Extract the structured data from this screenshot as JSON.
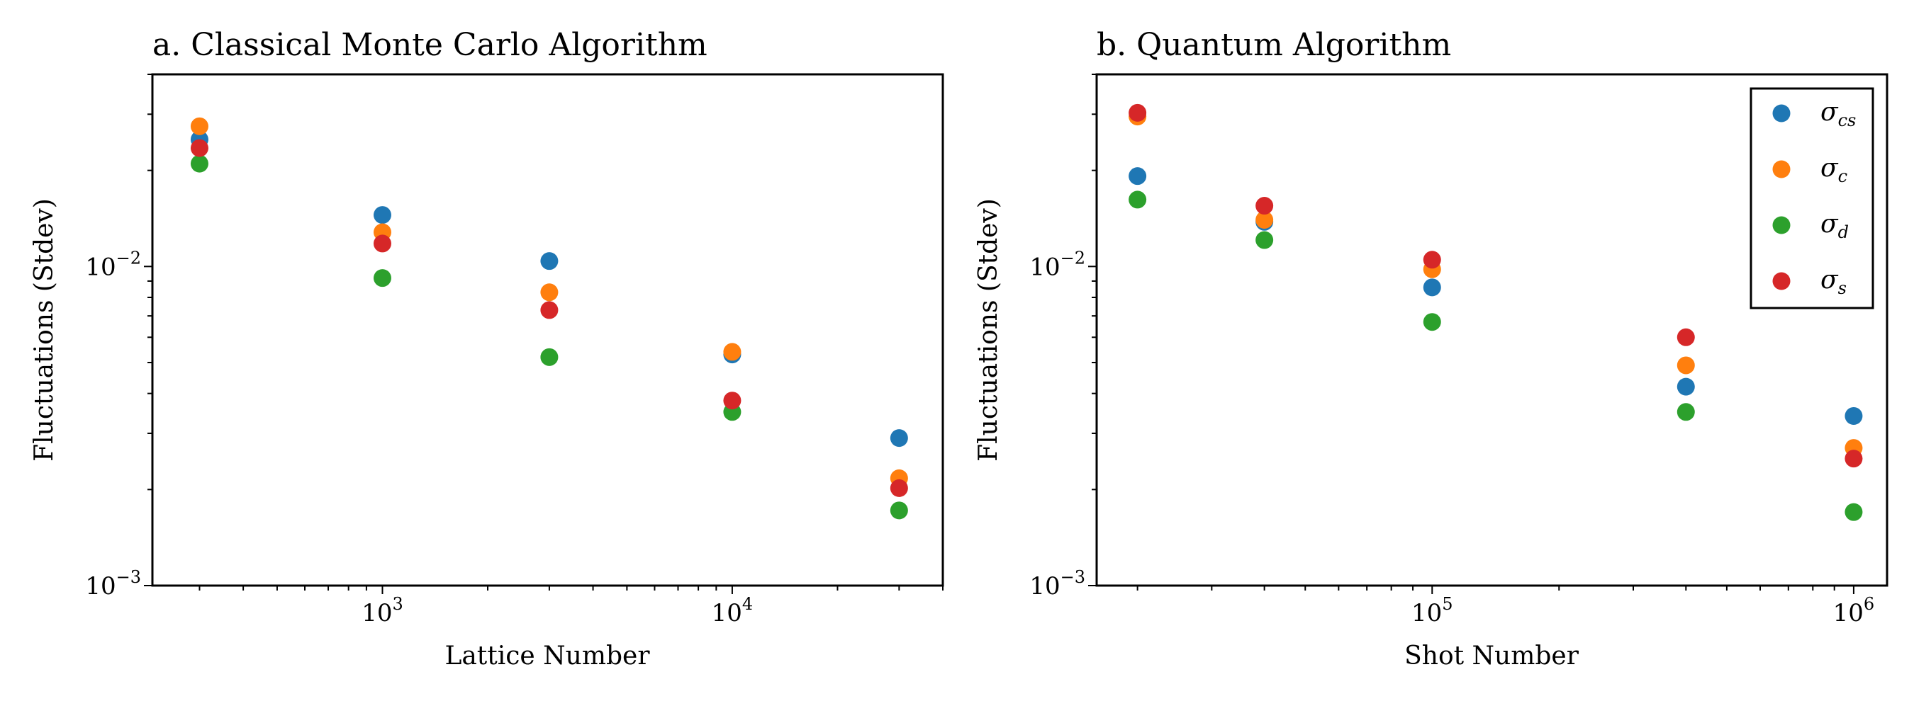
{
  "chart_data": [
    {
      "type": "scatter",
      "title": "a.  Classical Monte Carlo Algorithm",
      "xlabel": "Lattice Number",
      "ylabel": "Fluctuations (Stdev)",
      "xscale": "log",
      "yscale": "log",
      "xlim": [
        220,
        40000
      ],
      "ylim": [
        0.001,
        0.04
      ],
      "xticks": [
        {
          "base": "10",
          "exp": "3"
        },
        {
          "base": "10",
          "exp": "4"
        }
      ],
      "yticks": [
        {
          "base": "10",
          "exp": "−2"
        },
        {
          "base": "10",
          "exp": "−3"
        }
      ],
      "x": [
        300,
        1000,
        3000,
        10000,
        30000
      ],
      "series": [
        {
          "name": "σcs",
          "color": "#1f77b4",
          "values": [
            0.025,
            0.0145,
            0.0104,
            0.0053,
            0.0029
          ]
        },
        {
          "name": "σc",
          "color": "#ff7f0e",
          "values": [
            0.0275,
            0.0128,
            0.0083,
            0.0054,
            0.00217
          ]
        },
        {
          "name": "σd",
          "color": "#2ca02c",
          "values": [
            0.021,
            0.0092,
            0.0052,
            0.0035,
            0.00172
          ]
        },
        {
          "name": "σs",
          "color": "#d62728",
          "values": [
            0.0235,
            0.0118,
            0.0073,
            0.0038,
            0.00202
          ]
        }
      ]
    },
    {
      "type": "scatter",
      "title": "b.  Quantum Algorithm",
      "xlabel": "Shot Number",
      "ylabel": "Fluctuations (Stdev)",
      "xscale": "log",
      "yscale": "log",
      "xlim": [
        16000,
        1200000
      ],
      "ylim": [
        0.001,
        0.04
      ],
      "xticks": [
        {
          "base": "10",
          "exp": "5"
        },
        {
          "base": "10",
          "exp": "6"
        }
      ],
      "yticks": [
        {
          "base": "10",
          "exp": "−2"
        },
        {
          "base": "10",
          "exp": "−3"
        }
      ],
      "x": [
        20000,
        40000,
        100000,
        400000,
        1000000
      ],
      "series": [
        {
          "name": "σcs",
          "color": "#1f77b4",
          "values": [
            0.0192,
            0.0138,
            0.0086,
            0.0042,
            0.0034
          ]
        },
        {
          "name": "σc",
          "color": "#ff7f0e",
          "values": [
            0.0295,
            0.014,
            0.0098,
            0.0049,
            0.0027
          ]
        },
        {
          "name": "σd",
          "color": "#2ca02c",
          "values": [
            0.0162,
            0.0121,
            0.0067,
            0.0035,
            0.0017
          ]
        },
        {
          "name": "σs",
          "color": "#d62728",
          "values": [
            0.0303,
            0.0155,
            0.0105,
            0.006,
            0.0025
          ]
        }
      ],
      "legend": {
        "position": "top-right",
        "entries": [
          {
            "symbol": "σ",
            "sub": "cs",
            "color": "#1f77b4"
          },
          {
            "symbol": "σ",
            "sub": "c",
            "color": "#ff7f0e"
          },
          {
            "symbol": "σ",
            "sub": "d",
            "color": "#2ca02c"
          },
          {
            "symbol": "σ",
            "sub": "s",
            "color": "#d62728"
          }
        ]
      }
    }
  ]
}
